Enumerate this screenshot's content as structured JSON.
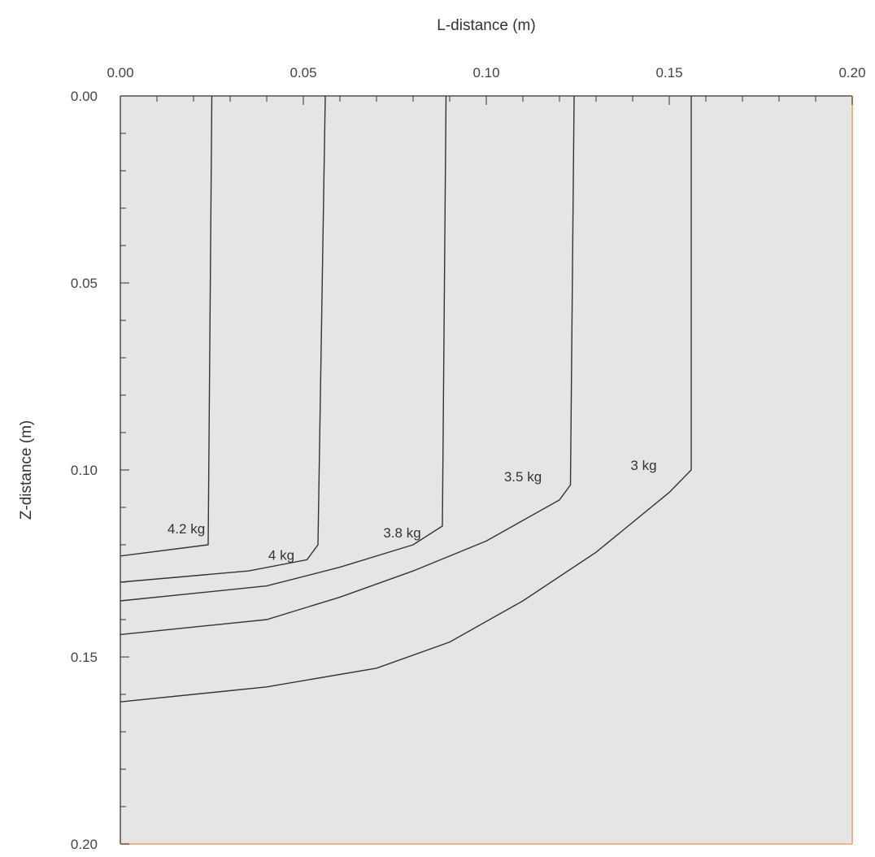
{
  "chart_data": {
    "type": "line",
    "xlabel": "L-distance (m)",
    "ylabel": "Z-distance (m)",
    "xlim": [
      0.0,
      0.2
    ],
    "ylim": [
      0.0,
      0.2
    ],
    "y_inverted": true,
    "x_axis_position": "top",
    "grid": false,
    "x_ticks": [
      "0.00",
      "0.05",
      "0.10",
      "0.15",
      "0.20"
    ],
    "y_ticks": [
      "0.00",
      "0.05",
      "0.10",
      "0.15",
      "0.20"
    ],
    "colors": {
      "plot_background": "#e5e5e5",
      "border_right_bottom": "#f0b48c",
      "line": "#333333"
    },
    "series": [
      {
        "name": "4.2 kg",
        "label_at": [
          0.018,
          0.117
        ],
        "points": [
          [
            0.025,
            0.0
          ],
          [
            0.024,
            0.12
          ],
          [
            0.0,
            0.123
          ]
        ]
      },
      {
        "name": "4 kg",
        "label_at": [
          0.044,
          0.124
        ],
        "points": [
          [
            0.056,
            0.0
          ],
          [
            0.054,
            0.12
          ],
          [
            0.051,
            0.124
          ],
          [
            0.035,
            0.127
          ],
          [
            0.0,
            0.13
          ]
        ]
      },
      {
        "name": "3.8 kg",
        "label_at": [
          0.077,
          0.118
        ],
        "points": [
          [
            0.089,
            0.0
          ],
          [
            0.088,
            0.115
          ],
          [
            0.08,
            0.12
          ],
          [
            0.06,
            0.126
          ],
          [
            0.04,
            0.131
          ],
          [
            0.0,
            0.135
          ]
        ]
      },
      {
        "name": "3.5 kg",
        "label_at": [
          0.11,
          0.103
        ],
        "points": [
          [
            0.124,
            0.0
          ],
          [
            0.123,
            0.104
          ],
          [
            0.12,
            0.108
          ],
          [
            0.1,
            0.119
          ],
          [
            0.08,
            0.127
          ],
          [
            0.06,
            0.134
          ],
          [
            0.04,
            0.14
          ],
          [
            0.0,
            0.144
          ]
        ]
      },
      {
        "name": "3 kg",
        "label_at": [
          0.143,
          0.1
        ],
        "points": [
          [
            0.156,
            0.0
          ],
          [
            0.156,
            0.1
          ],
          [
            0.15,
            0.106
          ],
          [
            0.13,
            0.122
          ],
          [
            0.11,
            0.135
          ],
          [
            0.09,
            0.146
          ],
          [
            0.07,
            0.153
          ],
          [
            0.04,
            0.158
          ],
          [
            0.0,
            0.162
          ]
        ]
      }
    ]
  }
}
